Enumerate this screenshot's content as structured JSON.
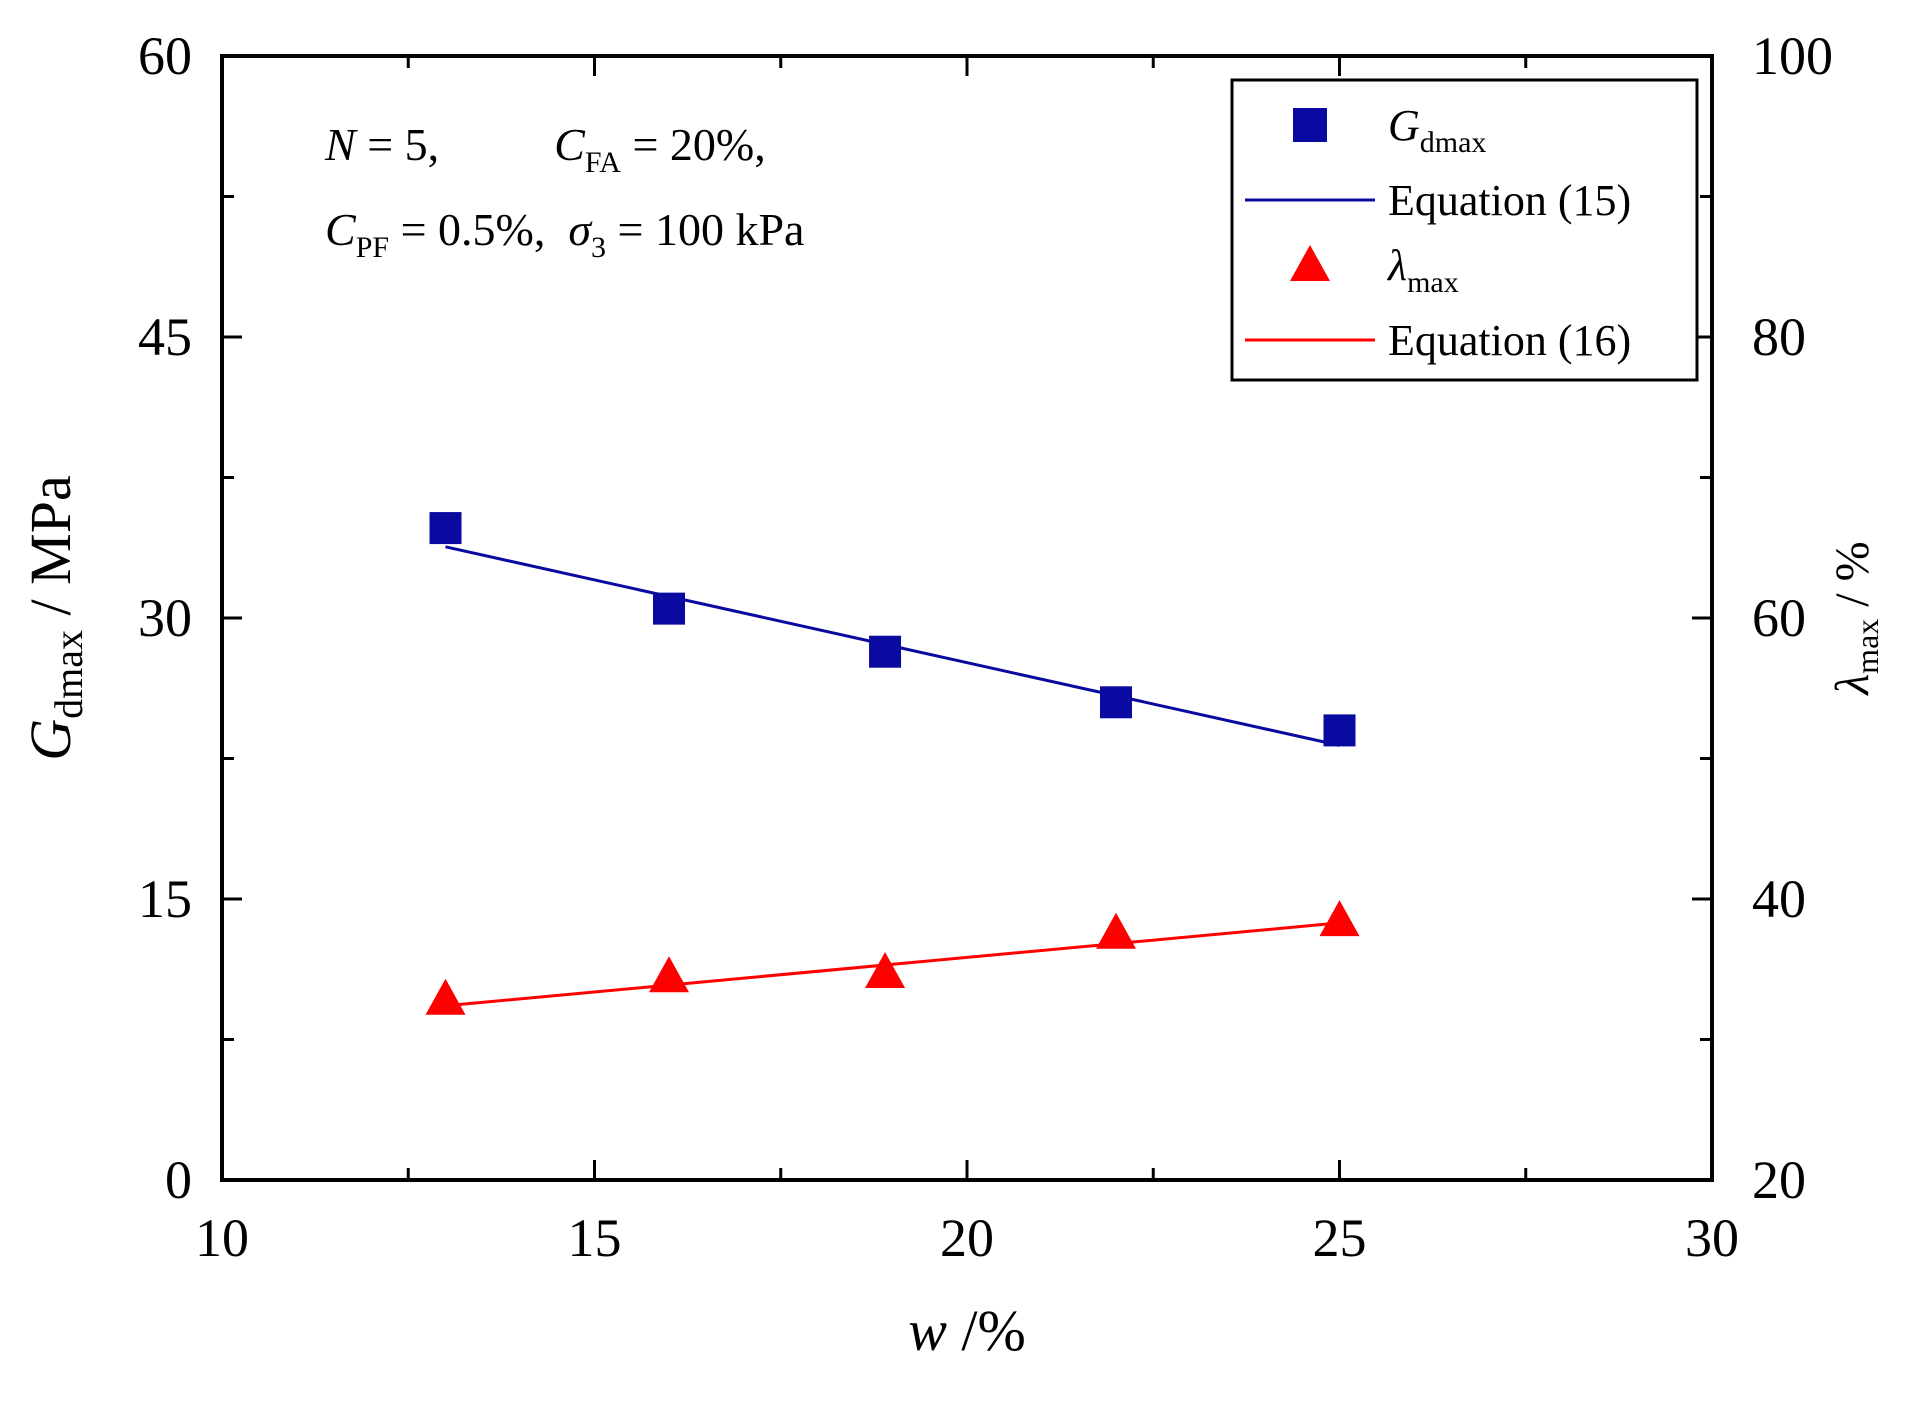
{
  "chart_data": {
    "type": "scatter",
    "annotation": {
      "line1": [
        {
          "t": "N",
          "i": true
        },
        {
          "t": " = 5,          "
        },
        {
          "t": "C",
          "i": true
        },
        {
          "t": "FA",
          "sub": true
        },
        {
          "t": " = 20%,"
        }
      ],
      "line2": [
        {
          "t": "C",
          "i": true
        },
        {
          "t": "PF",
          "sub": true
        },
        {
          "t": " = 0.5%,  "
        },
        {
          "t": "σ",
          "i": true
        },
        {
          "t": "3",
          "sub": true
        },
        {
          "t": " = 100 kPa"
        }
      ]
    },
    "x_axis": {
      "label_main": "w",
      "label_rest": " /%",
      "range": [
        10,
        30
      ],
      "ticks": [
        10,
        15,
        20,
        25,
        30
      ],
      "minor_ticks": [
        12.5,
        17.5,
        22.5,
        27.5
      ]
    },
    "y_left": {
      "label_main": "G",
      "label_sub": "dmax",
      "label_rest": " / MPa",
      "range": [
        0,
        60
      ],
      "ticks": [
        0,
        15,
        30,
        45,
        60
      ],
      "minor_ticks": [
        7.5,
        22.5,
        37.5,
        52.5
      ]
    },
    "y_right": {
      "label_main": "λ",
      "label_sub": "max",
      "label_rest": " / %",
      "range": [
        20,
        100
      ],
      "ticks": [
        20,
        40,
        60,
        80,
        100
      ],
      "minor_ticks": [
        30,
        50,
        70,
        90
      ]
    },
    "series": [
      {
        "name": "Gdmax",
        "legend_main": "G",
        "legend_sub": "dmax",
        "axis": "left",
        "marker": "square",
        "color": "#0a0aa0",
        "x": [
          13,
          16,
          18.9,
          22,
          25
        ],
        "y": [
          34.8,
          30.5,
          28.2,
          25.5,
          24.0
        ]
      },
      {
        "name": "Equation (15)",
        "legend_text": "Equation (15)",
        "axis": "left",
        "type": "line",
        "color": "#0a0aa0",
        "x": [
          13,
          25
        ],
        "y": [
          33.8,
          23.2
        ]
      },
      {
        "name": "λmax",
        "legend_main": "λ",
        "legend_sub": "max",
        "axis": "right",
        "marker": "triangle",
        "color": "#ff0000",
        "x": [
          13,
          16,
          18.9,
          22,
          25
        ],
        "y": [
          32.9,
          34.5,
          34.8,
          37.6,
          38.5
        ]
      },
      {
        "name": "Equation (16)",
        "legend_text": "Equation (16)",
        "axis": "right",
        "type": "line",
        "color": "#ff0000",
        "x": [
          13,
          25
        ],
        "y": [
          32.4,
          38.3
        ]
      }
    ],
    "legend_position": "top-right"
  }
}
